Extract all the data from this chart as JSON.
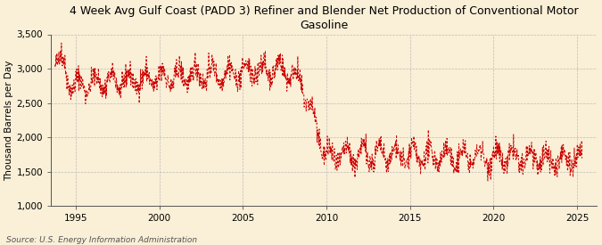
{
  "title": "4 Week Avg Gulf Coast (PADD 3) Refiner and Blender Net Production of Conventional Motor\nGasoline",
  "ylabel": "Thousand Barrels per Day",
  "source": "Source: U.S. Energy Information Administration",
  "background_color": "#faefd7",
  "plot_bg_color": "#faefd7",
  "line_color": "#cc0000",
  "ylim": [
    1000,
    3500
  ],
  "yticks": [
    1000,
    1500,
    2000,
    2500,
    3000,
    3500
  ],
  "ytick_labels": [
    "1,000",
    "1,500",
    "2,000",
    "2,500",
    "3,000",
    "3,500"
  ],
  "xticks": [
    1995,
    2000,
    2005,
    2010,
    2015,
    2020,
    2025
  ],
  "xlim_start": 1993.5,
  "xlim_end": 2026.2,
  "title_fontsize": 9,
  "axis_fontsize": 7.5,
  "source_fontsize": 6.5,
  "grid_color": "#b0b0b0",
  "spine_color": "#555555"
}
